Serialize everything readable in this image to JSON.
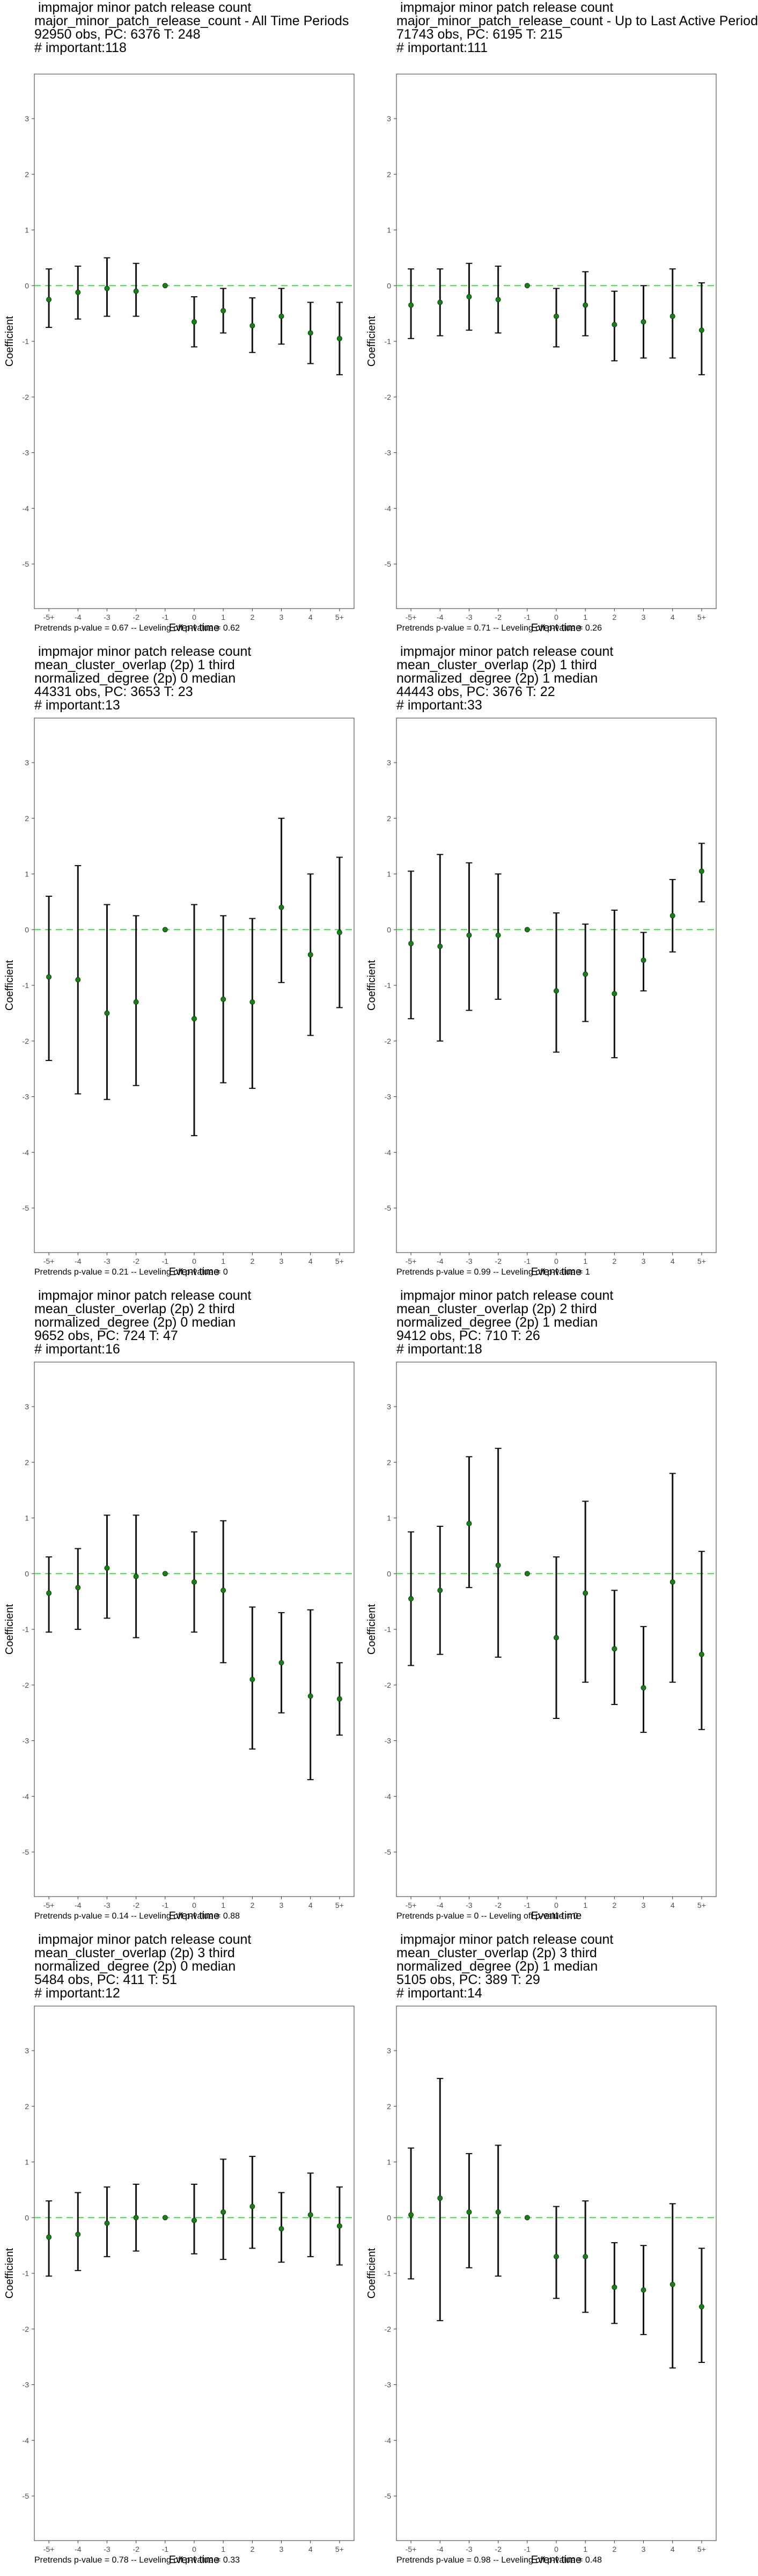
{
  "chart_data": [
    {
      "type": "scatter",
      "title": " impmajor minor patch release count\nmajor_minor_patch_release_count - All Time Periods\n92950 obs, PC: 6376 T: 248\n# important:118",
      "xlabel": "Event time",
      "ylabel": "Coefficient",
      "categories": [
        "-5+",
        "-4",
        "-3",
        "-2",
        "-1",
        "0",
        "1",
        "2",
        "3",
        "4",
        "5+"
      ],
      "ylim": [
        -5.8,
        3.8
      ],
      "yticks": [
        -5,
        -4,
        -3,
        -2,
        -1,
        0,
        1,
        2,
        3
      ],
      "reference_line": 0,
      "series": [
        {
          "estimate": [
            -0.25,
            -0.12,
            -0.05,
            -0.1,
            0,
            -0.65,
            -0.45,
            -0.72,
            -0.55,
            -0.85,
            -0.95
          ],
          "ci_low": [
            -0.75,
            -0.6,
            -0.55,
            -0.55,
            0,
            -1.1,
            -0.85,
            -1.2,
            -1.05,
            -1.4,
            -1.6
          ],
          "ci_high": [
            0.3,
            0.35,
            0.5,
            0.4,
            0,
            -0.2,
            -0.05,
            -0.22,
            -0.05,
            -0.3,
            -0.3
          ]
        }
      ],
      "caption": "Pretrends p-value = 0.67 -- Leveling off p-value = 0.62"
    },
    {
      "type": "scatter",
      "title": " impmajor minor patch release count\nmajor_minor_patch_release_count - Up to Last Active Period\n71743 obs, PC: 6195 T: 215\n# important:111",
      "xlabel": "Event time",
      "ylabel": "Coefficient",
      "categories": [
        "-5+",
        "-4",
        "-3",
        "-2",
        "-1",
        "0",
        "1",
        "2",
        "3",
        "4",
        "5+"
      ],
      "ylim": [
        -5.8,
        3.8
      ],
      "yticks": [
        -5,
        -4,
        -3,
        -2,
        -1,
        0,
        1,
        2,
        3
      ],
      "reference_line": 0,
      "series": [
        {
          "estimate": [
            -0.35,
            -0.3,
            -0.2,
            -0.25,
            0,
            -0.55,
            -0.35,
            -0.7,
            -0.65,
            -0.55,
            -0.8
          ],
          "ci_low": [
            -0.95,
            -0.9,
            -0.8,
            -0.85,
            0,
            -1.1,
            -0.9,
            -1.35,
            -1.3,
            -1.3,
            -1.6
          ],
          "ci_high": [
            0.3,
            0.3,
            0.4,
            0.35,
            0,
            -0.05,
            0.25,
            -0.1,
            0.0,
            0.3,
            0.05
          ]
        }
      ],
      "caption": "Pretrends p-value = 0.71 -- Leveling off p-value = 0.26"
    },
    {
      "type": "scatter",
      "title": " impmajor minor patch release count\nmean_cluster_overlap (2p) 1 third\nnormalized_degree (2p) 0 median\n44331 obs, PC: 3653 T: 23\n# important:13",
      "xlabel": "Event time",
      "ylabel": "Coefficient",
      "categories": [
        "-5+",
        "-4",
        "-3",
        "-2",
        "-1",
        "0",
        "1",
        "2",
        "3",
        "4",
        "5+"
      ],
      "ylim": [
        -5.8,
        3.8
      ],
      "yticks": [
        -5,
        -4,
        -3,
        -2,
        -1,
        0,
        1,
        2,
        3
      ],
      "reference_line": 0,
      "series": [
        {
          "estimate": [
            -0.85,
            -0.9,
            -1.5,
            -1.3,
            0,
            -1.6,
            -1.25,
            -1.3,
            0.4,
            -0.45,
            -0.05
          ],
          "ci_low": [
            -2.35,
            -2.95,
            -3.05,
            -2.8,
            0,
            -3.7,
            -2.75,
            -2.85,
            -0.95,
            -1.9,
            -1.4
          ],
          "ci_high": [
            0.6,
            1.15,
            0.45,
            0.25,
            0,
            0.45,
            0.25,
            0.2,
            2.0,
            1.0,
            1.3
          ]
        }
      ],
      "caption": "Pretrends p-value = 0.21 -- Leveling off p-value = 0"
    },
    {
      "type": "scatter",
      "title": " impmajor minor patch release count\nmean_cluster_overlap (2p) 1 third\nnormalized_degree (2p) 1 median\n44443 obs, PC: 3676 T: 22\n# important:33",
      "xlabel": "Event time",
      "ylabel": "Coefficient",
      "categories": [
        "-5+",
        "-4",
        "-3",
        "-2",
        "-1",
        "0",
        "1",
        "2",
        "3",
        "4",
        "5+"
      ],
      "ylim": [
        -5.8,
        3.8
      ],
      "yticks": [
        -5,
        -4,
        -3,
        -2,
        -1,
        0,
        1,
        2,
        3
      ],
      "reference_line": 0,
      "series": [
        {
          "estimate": [
            -0.25,
            -0.3,
            -0.1,
            -0.1,
            0,
            -1.1,
            -0.8,
            -1.15,
            -0.55,
            0.25,
            1.05
          ],
          "ci_low": [
            -1.6,
            -2.0,
            -1.45,
            -1.25,
            0,
            -2.2,
            -1.65,
            -2.3,
            -1.1,
            -0.4,
            0.5
          ],
          "ci_high": [
            1.05,
            1.35,
            1.2,
            1.0,
            0,
            0.3,
            0.1,
            0.35,
            -0.05,
            0.9,
            1.55
          ]
        }
      ],
      "caption": "Pretrends p-value = 0.99 -- Leveling off p-value = 1"
    },
    {
      "type": "scatter",
      "title": " impmajor minor patch release count\nmean_cluster_overlap (2p) 2 third\nnormalized_degree (2p) 0 median\n9652 obs, PC: 724 T: 47\n# important:16",
      "xlabel": "Event time",
      "ylabel": "Coefficient",
      "categories": [
        "-5+",
        "-4",
        "-3",
        "-2",
        "-1",
        "0",
        "1",
        "2",
        "3",
        "4",
        "5+"
      ],
      "ylim": [
        -5.8,
        3.8
      ],
      "yticks": [
        -5,
        -4,
        -3,
        -2,
        -1,
        0,
        1,
        2,
        3
      ],
      "reference_line": 0,
      "series": [
        {
          "estimate": [
            -0.35,
            -0.25,
            0.1,
            -0.05,
            0,
            -0.15,
            -0.3,
            -1.9,
            -1.6,
            -2.2,
            -2.25
          ],
          "ci_low": [
            -1.05,
            -1.0,
            -0.8,
            -1.15,
            0,
            -1.05,
            -1.6,
            -3.15,
            -2.5,
            -3.7,
            -2.9
          ],
          "ci_high": [
            0.3,
            0.45,
            1.05,
            1.05,
            0,
            0.75,
            0.95,
            -0.6,
            -0.7,
            -0.65,
            -1.6
          ]
        }
      ],
      "caption": "Pretrends p-value = 0.14 -- Leveling off p-value = 0.88"
    },
    {
      "type": "scatter",
      "title": " impmajor minor patch release count\nmean_cluster_overlap (2p) 2 third\nnormalized_degree (2p) 1 median\n9412 obs, PC: 710 T: 26\n# important:18",
      "xlabel": "Event time",
      "ylabel": "Coefficient",
      "categories": [
        "-5+",
        "-4",
        "-3",
        "-2",
        "-1",
        "0",
        "1",
        "2",
        "3",
        "4",
        "5+"
      ],
      "ylim": [
        -5.8,
        3.8
      ],
      "yticks": [
        -5,
        -4,
        -3,
        -2,
        -1,
        0,
        1,
        2,
        3
      ],
      "reference_line": 0,
      "series": [
        {
          "estimate": [
            -0.45,
            -0.3,
            0.9,
            0.15,
            0,
            -1.15,
            -0.35,
            -1.35,
            -2.05,
            -0.15,
            -1.45
          ],
          "ci_low": [
            -1.65,
            -1.45,
            -0.25,
            -1.5,
            0,
            -2.6,
            -1.95,
            -2.35,
            -2.85,
            -1.95,
            -2.8
          ],
          "ci_high": [
            0.75,
            0.85,
            2.1,
            2.25,
            0,
            0.3,
            1.3,
            -0.3,
            -0.95,
            1.8,
            0.4
          ]
        }
      ],
      "caption": "Pretrends p-value = 0 -- Leveling off p-value = 0"
    },
    {
      "type": "scatter",
      "title": " impmajor minor patch release count\nmean_cluster_overlap (2p) 3 third\nnormalized_degree (2p) 0 median\n5484 obs, PC: 411 T: 51\n# important:12",
      "xlabel": "Event time",
      "ylabel": "Coefficient",
      "categories": [
        "-5+",
        "-4",
        "-3",
        "-2",
        "-1",
        "0",
        "1",
        "2",
        "3",
        "4",
        "5+"
      ],
      "ylim": [
        -5.8,
        3.8
      ],
      "yticks": [
        -5,
        -4,
        -3,
        -2,
        -1,
        0,
        1,
        2,
        3
      ],
      "reference_line": 0,
      "series": [
        {
          "estimate": [
            -0.35,
            -0.3,
            -0.1,
            0.0,
            0,
            -0.05,
            0.1,
            0.2,
            -0.2,
            0.05,
            -0.15
          ],
          "ci_low": [
            -1.05,
            -0.95,
            -0.7,
            -0.6,
            0,
            -0.65,
            -0.75,
            -0.55,
            -0.8,
            -0.7,
            -0.85
          ],
          "ci_high": [
            0.3,
            0.45,
            0.55,
            0.6,
            0,
            0.6,
            1.05,
            1.1,
            0.45,
            0.8,
            0.55
          ]
        }
      ],
      "caption": "Pretrends p-value = 0.78 -- Leveling off p-value = 0.33"
    },
    {
      "type": "scatter",
      "title": " impmajor minor patch release count\nmean_cluster_overlap (2p) 3 third\nnormalized_degree (2p) 1 median\n5105 obs, PC: 389 T: 29\n# important:14",
      "xlabel": "Event time",
      "ylabel": "Coefficient",
      "categories": [
        "-5+",
        "-4",
        "-3",
        "-2",
        "-1",
        "0",
        "1",
        "2",
        "3",
        "4",
        "5+"
      ],
      "ylim": [
        -5.8,
        3.8
      ],
      "yticks": [
        -5,
        -4,
        -3,
        -2,
        -1,
        0,
        1,
        2,
        3
      ],
      "reference_line": 0,
      "series": [
        {
          "estimate": [
            0.05,
            0.35,
            0.1,
            0.1,
            0,
            -0.7,
            -0.7,
            -1.25,
            -1.3,
            -1.2,
            -1.6
          ],
          "ci_low": [
            -1.1,
            -1.85,
            -0.9,
            -1.05,
            0,
            -1.45,
            -1.7,
            -1.9,
            -2.1,
            -2.7,
            -2.6
          ],
          "ci_high": [
            1.25,
            2.5,
            1.15,
            1.3,
            0,
            0.2,
            0.3,
            -0.45,
            -0.5,
            0.25,
            -0.55
          ]
        }
      ],
      "caption": "Pretrends p-value = 0.98 -- Leveling off p-value = 0.48"
    }
  ]
}
